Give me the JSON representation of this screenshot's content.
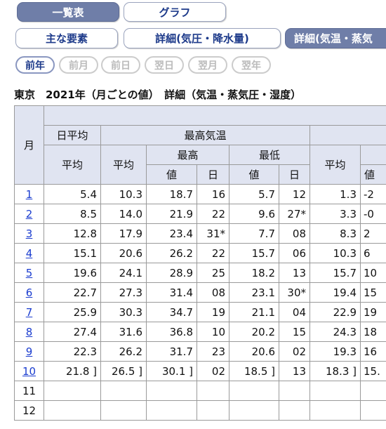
{
  "tabs_top": [
    {
      "label": "一覧表",
      "selected": true
    },
    {
      "label": "グラフ",
      "selected": false
    }
  ],
  "tabs_detail": [
    {
      "label": "主な要素",
      "selected": false
    },
    {
      "label": "詳細(気圧・降水量)",
      "selected": false
    },
    {
      "label": "詳細(気温・蒸気",
      "selected": true
    }
  ],
  "nav": [
    {
      "label": "前年",
      "enabled": true
    },
    {
      "label": "前月",
      "enabled": false
    },
    {
      "label": "前日",
      "enabled": false
    },
    {
      "label": "翌日",
      "enabled": false
    },
    {
      "label": "翌月",
      "enabled": false
    },
    {
      "label": "翌年",
      "enabled": false
    }
  ],
  "table": {
    "caption": "東京　2021年（月ごとの値）　詳細（気温・蒸気圧・湿度）",
    "header": {
      "month": "月",
      "daily_mean": "日平均",
      "max_temp": "最高気温",
      "mean": "平均",
      "max_mean": "平均",
      "highest": "最高",
      "lowest": "最低",
      "next_mean": "平均",
      "value1": "値",
      "day1": "日",
      "value2": "値",
      "day2": "日",
      "value3": "値"
    },
    "rows": [
      [
        "1",
        "5.4",
        "10.3",
        "18.7",
        "16",
        "5.7",
        "12",
        "1.3",
        "-2"
      ],
      [
        "2",
        "8.5",
        "14.0",
        "21.9",
        "22",
        "9.6",
        "27*",
        "3.3",
        "-0"
      ],
      [
        "3",
        "12.8",
        "17.9",
        "23.4",
        "31*",
        "7.7",
        "08",
        "8.3",
        "2"
      ],
      [
        "4",
        "15.1",
        "20.6",
        "26.2",
        "22",
        "15.7",
        "06",
        "10.3",
        "6"
      ],
      [
        "5",
        "19.6",
        "24.1",
        "28.9",
        "25",
        "18.2",
        "13",
        "15.7",
        "10"
      ],
      [
        "6",
        "22.7",
        "27.3",
        "31.4",
        "08",
        "23.1",
        "30*",
        "19.4",
        "15"
      ],
      [
        "7",
        "25.9",
        "30.3",
        "34.7",
        "19",
        "21.1",
        "04",
        "22.9",
        "19"
      ],
      [
        "8",
        "27.4",
        "31.6",
        "36.8",
        "10",
        "20.2",
        "15",
        "24.3",
        "18"
      ],
      [
        "9",
        "22.3",
        "26.2",
        "31.7",
        "23",
        "20.6",
        "02",
        "19.3",
        "16"
      ],
      [
        "10",
        "21.8 ]",
        "26.5 ]",
        "30.1 ]",
        "02",
        "18.5 ]",
        "13",
        "18.3 ]",
        "15."
      ],
      [
        "11"
      ],
      [
        "12"
      ]
    ]
  }
}
